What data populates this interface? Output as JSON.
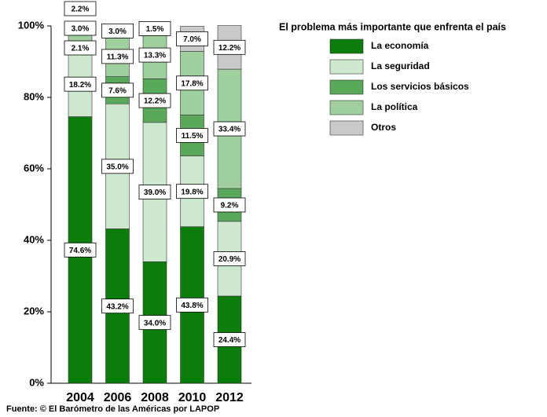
{
  "chart_data": {
    "type": "stacked_bar",
    "legend_title": "El problema más importante que enfrenta el país",
    "source": "Fuente: © El Barómetro de las Américas por LAPOP",
    "categories": [
      "2004",
      "2006",
      "2008",
      "2010",
      "2012"
    ],
    "series": [
      {
        "name": "La economía",
        "color": "#0b7d0b",
        "values": [
          74.6,
          43.2,
          34.0,
          43.8,
          24.4
        ],
        "value_labels": [
          "74.6%",
          "43.2%",
          "34.0%",
          "43.8%",
          "24.4%"
        ]
      },
      {
        "name": "La seguridad",
        "color": "#cde8cd",
        "values": [
          18.2,
          35.0,
          39.0,
          19.8,
          20.9
        ],
        "value_labels": [
          "18.2%",
          "35.0%",
          "39.0%",
          "19.8%",
          "20.9%"
        ]
      },
      {
        "name": "Los servicios básicos",
        "color": "#5aa85a",
        "values": [
          2.1,
          7.6,
          12.2,
          11.5,
          9.2
        ],
        "value_labels": [
          "2.1%",
          "7.6%",
          "12.2%",
          "11.5%",
          "9.2%"
        ]
      },
      {
        "name": "La política",
        "color": "#9fcf9f",
        "values": [
          3.0,
          11.3,
          13.3,
          17.8,
          33.4
        ],
        "value_labels": [
          "3.0%",
          "11.3%",
          "13.3%",
          "17.8%",
          "33.4%"
        ]
      },
      {
        "name": "Otros",
        "color": "#c9c9c9",
        "values": [
          2.2,
          3.0,
          1.5,
          7.0,
          12.2
        ],
        "value_labels": [
          "2.2%",
          "3.0%",
          "1.5%",
          "7.0%",
          "12.2%"
        ]
      }
    ],
    "ylim": [
      0,
      100
    ],
    "yticks": [
      {
        "value": 0,
        "label": "0%"
      },
      {
        "value": 20,
        "label": "20%"
      },
      {
        "value": 40,
        "label": "40%"
      },
      {
        "value": 60,
        "label": "60%"
      },
      {
        "value": 80,
        "label": "80%"
      },
      {
        "value": 100,
        "label": "100%"
      }
    ],
    "legend": "top-right"
  }
}
